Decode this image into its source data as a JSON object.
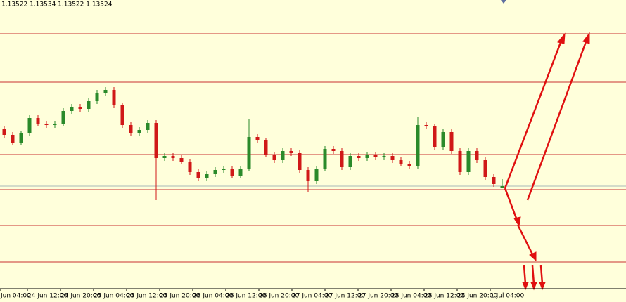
{
  "chart_data": {
    "type": "candlestick",
    "header": "1.13522 1.13534 1.13522 1.13524",
    "x_labels": [
      "Jun 04:00",
      "24 Jun 12:00",
      "24 Jun 20:00",
      "25 Jun 04:00",
      "25 Jun 12:00",
      "25 Jun 20:00",
      "26 Jun 04:00",
      "26 Jun 12:00",
      "26 Jun 20:00",
      "27 Jun 04:00",
      "27 Jun 12:00",
      "27 Jun 20:00",
      "28 Jun 04:00",
      "28 Jun 12:00",
      "28 Jun 20:00",
      "1 Jul 04:00"
    ],
    "open": [
      1.13605,
      1.13597,
      1.13586,
      1.13599,
      1.13621,
      1.13613,
      1.13611,
      1.13613,
      1.13631,
      1.13637,
      1.13634,
      1.13645,
      1.13657,
      1.13661,
      1.13639,
      1.13611,
      1.13599,
      1.13604,
      1.13614,
      1.13564,
      1.13567,
      1.13564,
      1.13559,
      1.13544,
      1.13535,
      1.13541,
      1.13547,
      1.13549,
      1.13539,
      1.13549,
      1.13594,
      1.13589,
      1.13569,
      1.13561,
      1.13574,
      1.13571,
      1.13547,
      1.13531,
      1.13549,
      1.13577,
      1.13574,
      1.13551,
      1.13567,
      1.13564,
      1.13569,
      1.13565,
      1.13567,
      1.13561,
      1.13556,
      1.13553,
      1.13611,
      1.13609,
      1.13579,
      1.13601,
      1.13574,
      1.13544,
      1.13574,
      1.13561,
      1.13537,
      1.13522
    ],
    "high": [
      1.13609,
      1.13601,
      1.13603,
      1.13625,
      1.13625,
      1.13617,
      1.13617,
      1.13635,
      1.13641,
      1.13641,
      1.13649,
      1.13661,
      1.13665,
      1.13665,
      1.13643,
      1.13615,
      1.13608,
      1.13618,
      1.13618,
      1.13571,
      1.13571,
      1.13568,
      1.13563,
      1.13548,
      1.13545,
      1.13551,
      1.13553,
      1.13553,
      1.13553,
      1.1362,
      1.13598,
      1.13593,
      1.13573,
      1.13578,
      1.13578,
      1.13575,
      1.13551,
      1.13553,
      1.13581,
      1.13581,
      1.13578,
      1.13571,
      1.13571,
      1.13573,
      1.13573,
      1.13571,
      1.13571,
      1.13565,
      1.1356,
      1.13622,
      1.13615,
      1.13613,
      1.13605,
      1.13605,
      1.13578,
      1.13578,
      1.13578,
      1.13565,
      1.13541,
      1.13534
    ],
    "low": [
      1.13593,
      1.13582,
      1.13582,
      1.13595,
      1.13609,
      1.13607,
      1.13607,
      1.13609,
      1.13627,
      1.1363,
      1.1363,
      1.13641,
      1.13653,
      1.13635,
      1.13607,
      1.13595,
      1.13595,
      1.136,
      1.13504,
      1.1356,
      1.1356,
      1.13555,
      1.1354,
      1.13531,
      1.13531,
      1.13537,
      1.13543,
      1.13535,
      1.13535,
      1.13545,
      1.13585,
      1.13565,
      1.13557,
      1.13557,
      1.13567,
      1.13543,
      1.13515,
      1.13527,
      1.13545,
      1.1357,
      1.13547,
      1.13547,
      1.1356,
      1.1356,
      1.13561,
      1.13561,
      1.13557,
      1.13552,
      1.13549,
      1.13549,
      1.13605,
      1.13575,
      1.13575,
      1.1357,
      1.1354,
      1.1354,
      1.13557,
      1.13533,
      1.13523,
      1.13522
    ],
    "close": [
      1.13597,
      1.13586,
      1.13599,
      1.13621,
      1.13613,
      1.13611,
      1.13613,
      1.13631,
      1.13637,
      1.13634,
      1.13645,
      1.13657,
      1.13661,
      1.13639,
      1.13611,
      1.13599,
      1.13604,
      1.13614,
      1.13564,
      1.13567,
      1.13564,
      1.13559,
      1.13544,
      1.13535,
      1.13541,
      1.13547,
      1.13549,
      1.13539,
      1.13549,
      1.13594,
      1.13589,
      1.13569,
      1.13561,
      1.13574,
      1.13571,
      1.13547,
      1.13531,
      1.13549,
      1.13577,
      1.13574,
      1.13551,
      1.13567,
      1.13564,
      1.13569,
      1.13565,
      1.13567,
      1.13561,
      1.13556,
      1.13553,
      1.13611,
      1.13609,
      1.13579,
      1.13601,
      1.13574,
      1.13544,
      1.13574,
      1.13561,
      1.13537,
      1.13527,
      1.13524
    ],
    "up_color": "#2a8a2a",
    "down_color": "#d01818",
    "levels": [
      1.13741,
      1.13672,
      1.13569,
      1.13519,
      1.13468,
      1.13416
    ],
    "level_color": "#c83232",
    "current_price": 1.13524,
    "current_color": "#a8b8b8",
    "ylim": [
      1.13379,
      1.13789
    ]
  }
}
